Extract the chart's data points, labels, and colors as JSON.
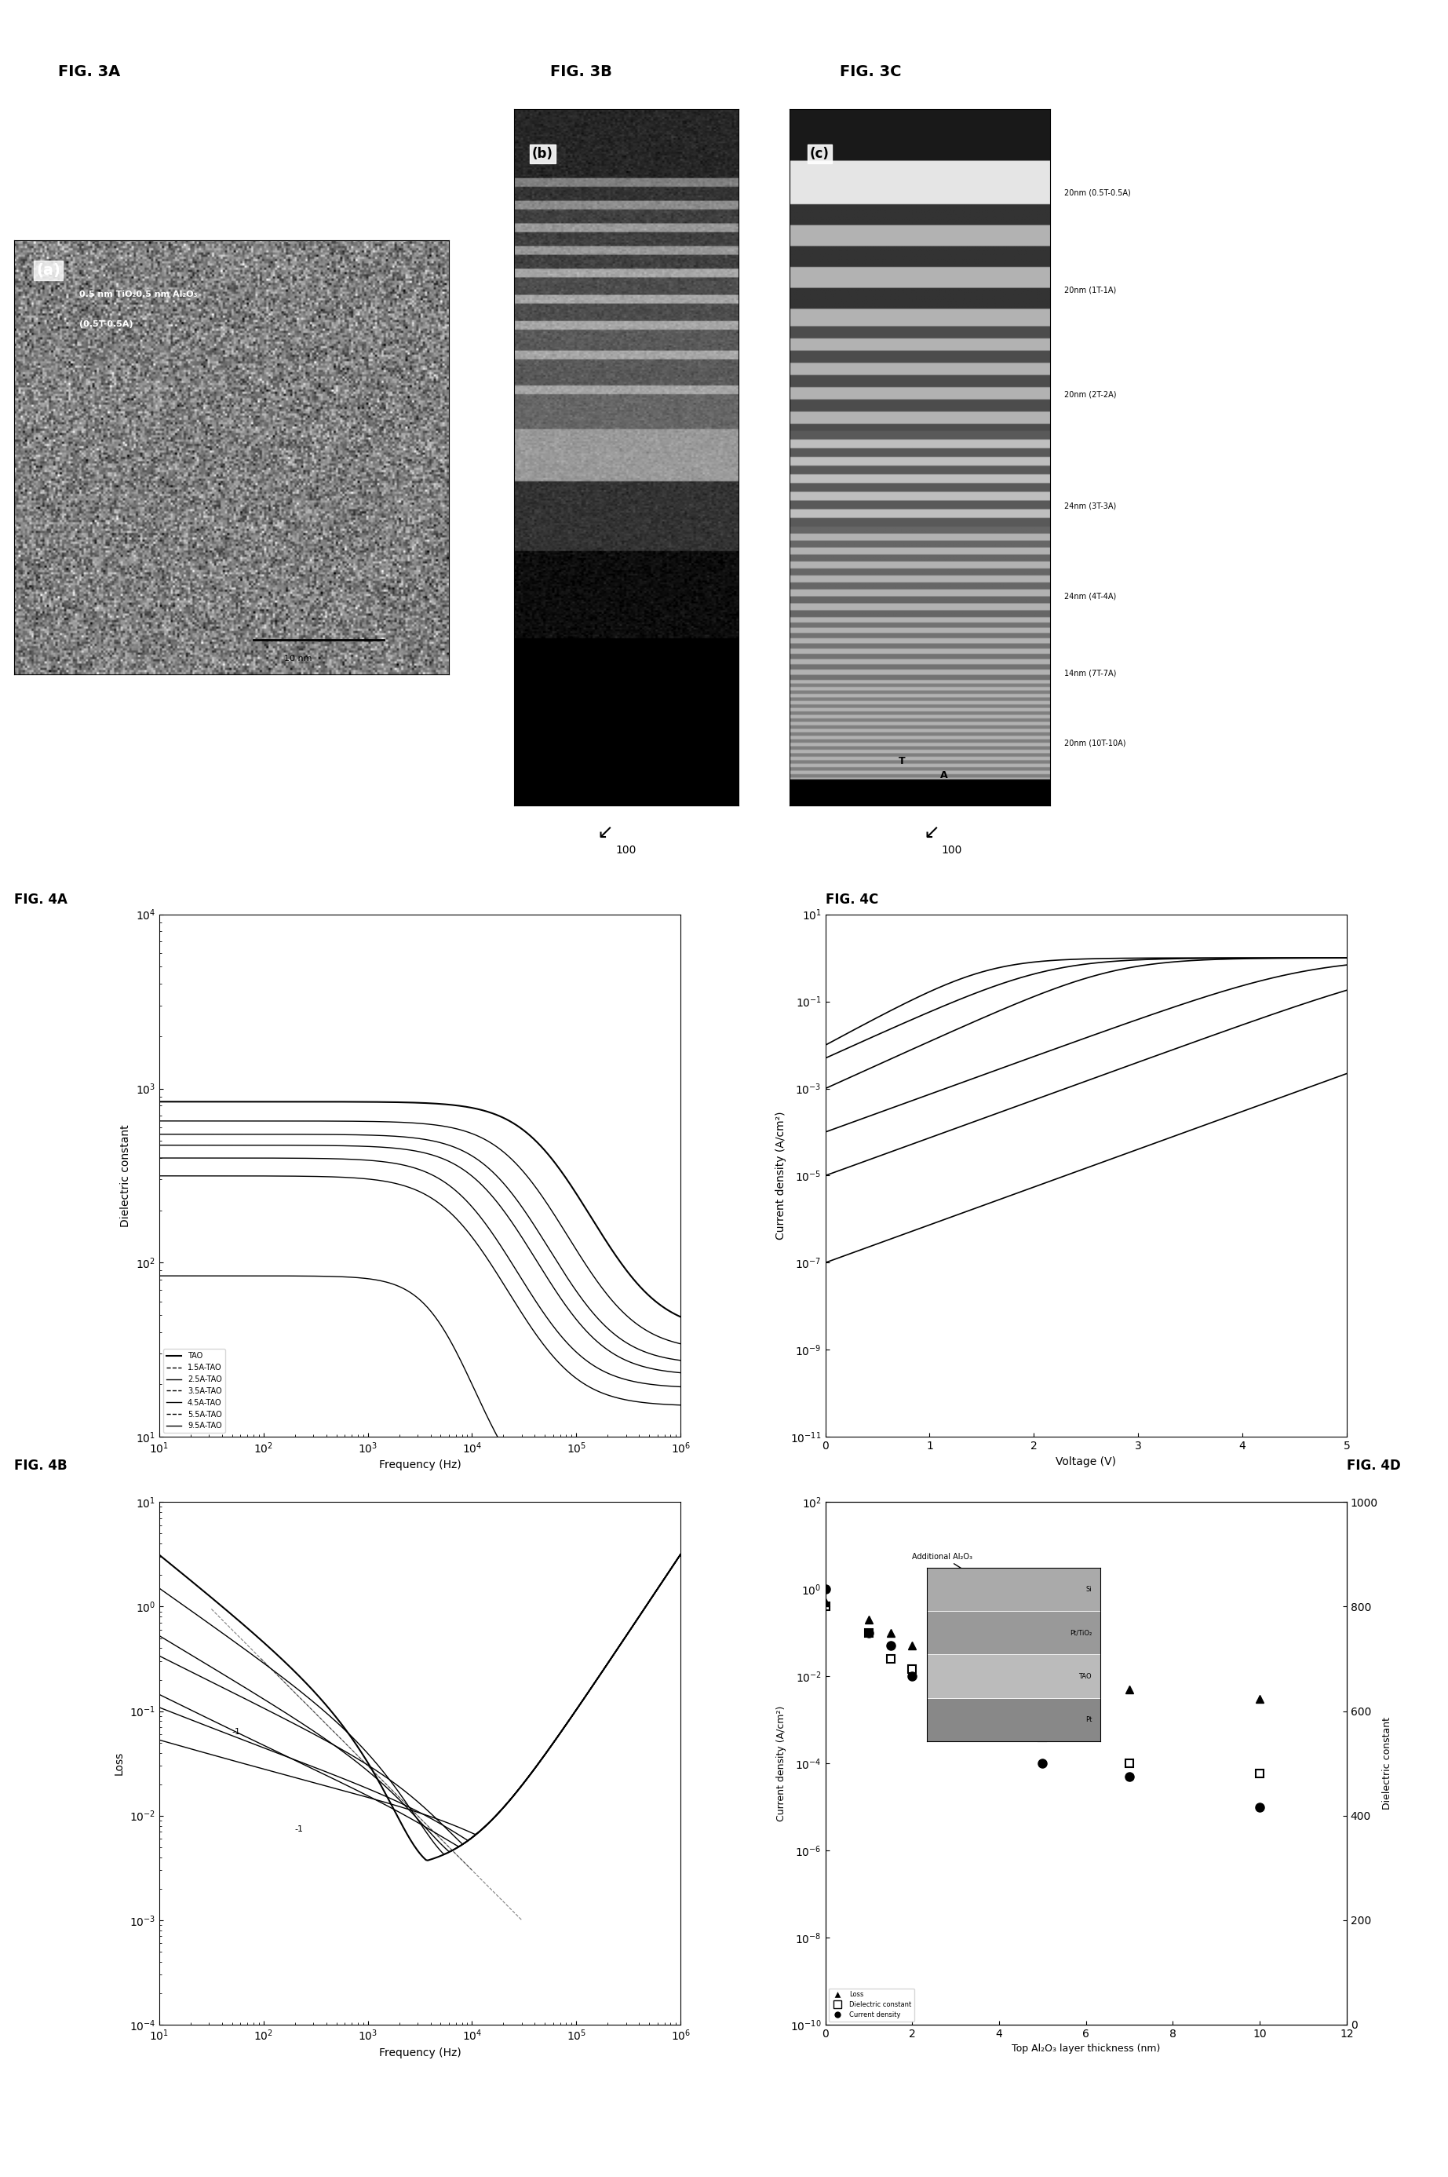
{
  "fig3a_label": "FIG. 3A",
  "fig3b_label": "FIG. 3B",
  "fig3c_label": "FIG. 3C",
  "fig4a_label": "FIG. 4A",
  "fig4b_label": "FIG. 4B",
  "fig4c_label": "FIG. 4C",
  "fig4d_label": "FIG. 4D",
  "fig3a_sublabel": "(a)",
  "fig3a_text1": "0.5 nm TiO₂0.5 nm Al₂O₃",
  "fig3a_text2": "(0.5T-0.5A)",
  "fig3a_scalebar": "10 nm",
  "fig3c_labels": [
    "20nm (0.5T-0.5A)",
    "20nm (1T-1A)",
    "20nm (2T-2A)",
    "24nm (3T-3A)",
    "24nm (4T-4A)",
    "14nm (7T-7A)",
    "20nm (10T-10A)"
  ],
  "fig3c_T_label": "T",
  "fig3c_A_label": "A",
  "arrow_label": "100",
  "fig4a_legend": [
    "TAO",
    "1.5A-TAO",
    "2.5A-TAO",
    "3.5A-TAO",
    "4.5A-TAO",
    "5.5A-TAO",
    "9.5A-TAO"
  ],
  "fig4a_xlabel": "Frequency (Hz)",
  "fig4a_ylabel": "Dielectric constant",
  "fig4a_xlim": [
    10.0,
    1000000.0
  ],
  "fig4a_ylim": [
    10.0,
    10000.0
  ],
  "fig4c_xlabel": "Voltage (V)",
  "fig4c_ylabel": "Current density (A/cm²)",
  "fig4c_xlim": [
    0,
    5
  ],
  "fig4c_ylim": [
    1e-11,
    10.0
  ],
  "fig4b_xlabel": "Frequency (Hz)",
  "fig4b_ylabel": "Loss",
  "fig4b_xlim": [
    10.0,
    1000000.0
  ],
  "fig4b_ylim": [
    0.0001,
    10.0
  ],
  "fig4d_xlabel": "Top Al₂O₃ layer thickness (nm)",
  "fig4d_ylabel1": "Current density (A/cm²)",
  "fig4d_ylabel2": "Dielectric constant",
  "fig4d_xlim": [
    0,
    12
  ],
  "fig4d_ylim1": [
    1e-10,
    100.0
  ],
  "fig4d_ylim2": [
    0,
    1000
  ],
  "fig4d_y2ticks": [
    0,
    200,
    400,
    600,
    800,
    1000
  ],
  "fig4d_legend": [
    "Loss",
    "Dielectric constant",
    "Current density"
  ],
  "fig4d_inset_lines": [
    "Pt",
    "TAO",
    "Pt/TiO₂",
    "Si"
  ],
  "background_color": "#ffffff",
  "axes_color": "#000000",
  "fig3b_color_top": "#888888",
  "fig3c_color_light": "#cccccc",
  "fig3c_color_dark": "#333333"
}
